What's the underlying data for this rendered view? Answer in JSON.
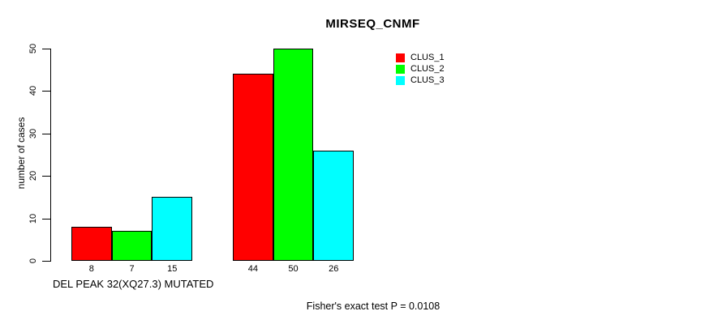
{
  "chart_data": {
    "type": "bar",
    "title": "MIRSEQ_CNMF",
    "ylabel": "number of cases",
    "xlabel": "",
    "ylim": [
      0,
      50
    ],
    "yticks": [
      0,
      10,
      20,
      30,
      40,
      50
    ],
    "grid": false,
    "legend_position": "inside-top-right",
    "group_labels": [
      "DEL PEAK 32(XQ27.3) MUTATED",
      ""
    ],
    "series": [
      {
        "name": "CLUS_1",
        "color": "#ff0000",
        "values": [
          8,
          44
        ]
      },
      {
        "name": "CLUS_2",
        "color": "#00ff00",
        "values": [
          7,
          50
        ]
      },
      {
        "name": "CLUS_3",
        "color": "#00ffff",
        "values": [
          15,
          26
        ]
      }
    ],
    "bar_value_labels": [
      [
        8,
        7,
        15
      ],
      [
        44,
        50,
        26
      ]
    ],
    "footnote": "Fisher's exact test P = 0.0108",
    "bar_border_color": "#000000",
    "background_color": "#ffffff"
  }
}
